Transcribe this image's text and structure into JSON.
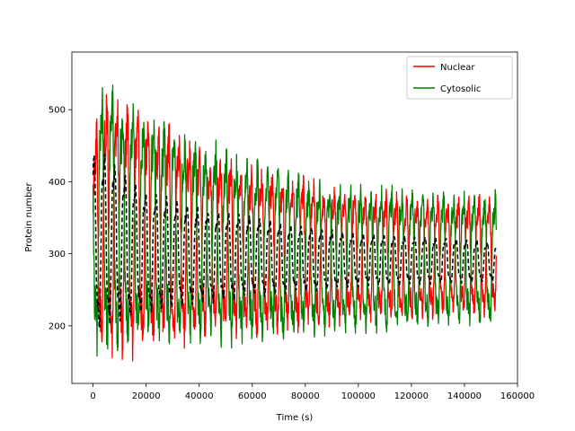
{
  "chart_data": {
    "type": "line",
    "title": "",
    "xlabel": "Time (s)",
    "ylabel": "Protein number",
    "xlim": [
      -8000,
      160000
    ],
    "ylim": [
      120,
      580
    ],
    "xticks": [
      0,
      20000,
      40000,
      60000,
      80000,
      100000,
      120000,
      140000,
      160000
    ],
    "xtick_labels": [
      "0",
      "20000",
      "40000",
      "60000",
      "80000",
      "100000",
      "120000",
      "140000",
      "160000"
    ],
    "yticks": [
      200,
      300,
      400,
      500
    ],
    "ytick_labels": [
      "200",
      "300",
      "400",
      "500"
    ],
    "legend_position": "top-right",
    "grid": false,
    "series": [
      {
        "name": "Nuclear",
        "color": "#ff0000",
        "style": "solid",
        "x_range": [
          0,
          152000
        ],
        "period": 3900,
        "peak_envelope_x": [
          0,
          5000,
          20000,
          40000,
          60000,
          80000,
          100000,
          120000,
          140000,
          152000
        ],
        "peak_envelope_y": [
          470,
          550,
          505,
          460,
          430,
          410,
          395,
          385,
          385,
          385
        ],
        "trough_envelope_x": [
          0,
          5000,
          20000,
          40000,
          60000,
          80000,
          100000,
          120000,
          140000,
          152000
        ],
        "trough_envelope_y": [
          160,
          140,
          155,
          170,
          180,
          190,
          200,
          205,
          210,
          212
        ]
      },
      {
        "name": "Cytosolic",
        "color": "#008000",
        "style": "solid",
        "x_range": [
          0,
          152000
        ],
        "period": 3900,
        "peak_envelope_x": [
          0,
          5000,
          20000,
          40000,
          60000,
          80000,
          100000,
          120000,
          140000,
          152000
        ],
        "peak_envelope_y": [
          560,
          545,
          510,
          470,
          440,
          415,
          400,
          395,
          390,
          390
        ],
        "trough_envelope_x": [
          0,
          5000,
          20000,
          40000,
          60000,
          80000,
          100000,
          120000,
          140000,
          152000
        ],
        "trough_envelope_y": [
          155,
          148,
          160,
          165,
          172,
          178,
          185,
          190,
          195,
          195
        ]
      },
      {
        "color": "#000000",
        "style": "dashed",
        "x_range": [
          0,
          152000
        ],
        "period": 3900,
        "peak_envelope_x": [
          0,
          5000,
          20000,
          40000,
          60000,
          80000,
          100000,
          120000,
          140000,
          152000
        ],
        "peak_envelope_y": [
          465,
          455,
          400,
          375,
          360,
          345,
          335,
          330,
          325,
          320
        ],
        "trough_envelope_x": [
          0,
          5000,
          20000,
          40000,
          60000,
          80000,
          100000,
          120000,
          140000,
          152000
        ],
        "trough_envelope_y": [
          170,
          185,
          205,
          220,
          232,
          240,
          248,
          252,
          255,
          257
        ]
      }
    ],
    "legend": [
      {
        "label": "Nuclear",
        "color": "#ff0000"
      },
      {
        "label": "Cytosolic",
        "color": "#008000"
      }
    ]
  }
}
